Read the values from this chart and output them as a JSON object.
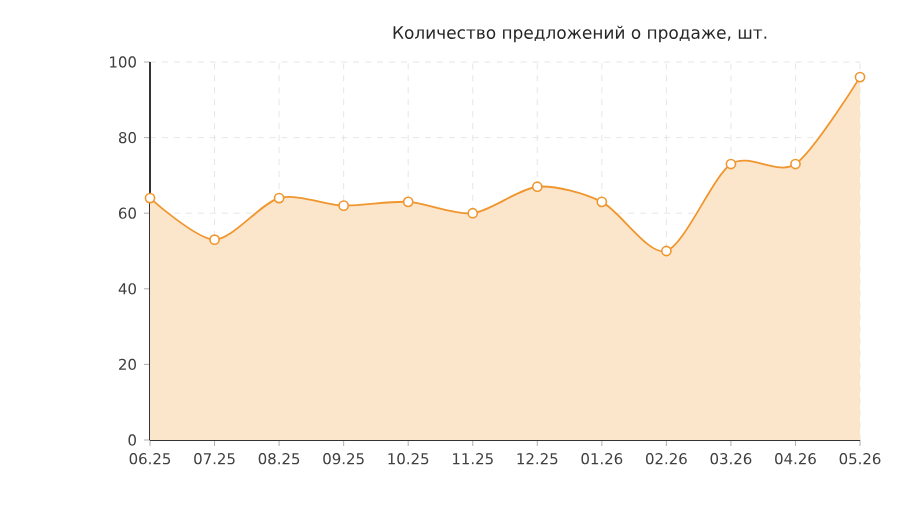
{
  "chart_data": {
    "type": "area",
    "title": "Количество предложений о продаже, шт.",
    "categories": [
      "06.25",
      "07.25",
      "08.25",
      "09.25",
      "10.25",
      "11.25",
      "12.25",
      "01.26",
      "02.26",
      "03.26",
      "04.26",
      "05.26"
    ],
    "series": [
      {
        "color": "#f0962e",
        "values": [
          64,
          53,
          64,
          62,
          63,
          60,
          67,
          63,
          50,
          73,
          73,
          96
        ]
      }
    ],
    "ylim": [
      0,
      100
    ],
    "yticks": [
      0,
      20,
      40,
      60,
      80,
      100
    ],
    "grid": true,
    "marker": "circle",
    "line_style": "solid"
  }
}
